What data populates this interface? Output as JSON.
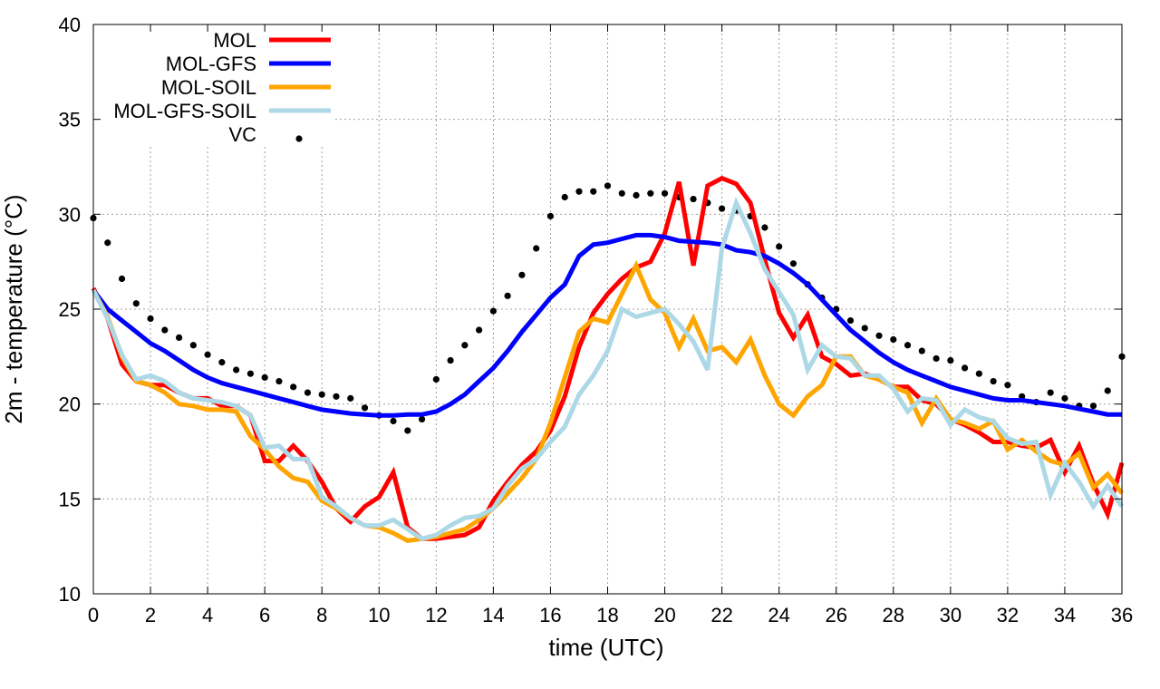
{
  "chart_data": {
    "type": "line",
    "title": "",
    "xlabel": "time (UTC)",
    "ylabel": "2m - temperature (°C)",
    "xlim": [
      0,
      36
    ],
    "ylim": [
      10,
      40
    ],
    "xticks": [
      0,
      2,
      4,
      6,
      8,
      10,
      12,
      14,
      16,
      18,
      20,
      22,
      24,
      26,
      28,
      30,
      32,
      34,
      36
    ],
    "yticks": [
      10,
      15,
      20,
      25,
      30,
      35,
      40
    ],
    "grid": true,
    "legend_position": "top-left",
    "series": [
      {
        "name": "MOL",
        "color": "#ff0000",
        "style": "line",
        "x": [
          0,
          0.5,
          1,
          1.5,
          2,
          2.5,
          3,
          3.5,
          4,
          4.5,
          5,
          5.5,
          6,
          6.5,
          7,
          7.5,
          8,
          8.5,
          9,
          9.5,
          10,
          10.5,
          11,
          11.5,
          12,
          12.5,
          13,
          13.5,
          14,
          14.5,
          15,
          15.5,
          16,
          16.5,
          17,
          17.5,
          18,
          18.5,
          19,
          19.5,
          20,
          20.5,
          21,
          21.5,
          22,
          22.5,
          23,
          23.5,
          24,
          24.5,
          25,
          25.5,
          26,
          26.5,
          27,
          27.5,
          28,
          28.5,
          29,
          29.5,
          30,
          30.5,
          31,
          31.5,
          32,
          32.5,
          33,
          33.5,
          34,
          34.5,
          35,
          35.5,
          36
        ],
        "y": [
          26.1,
          24.5,
          22.1,
          21.2,
          21.0,
          21.0,
          20.6,
          20.3,
          20.3,
          19.9,
          19.9,
          19.4,
          17.0,
          17.0,
          17.8,
          17.0,
          15.9,
          14.5,
          13.8,
          14.6,
          15.1,
          16.4,
          13.5,
          12.9,
          12.9,
          13.0,
          13.1,
          13.5,
          14.9,
          15.9,
          16.8,
          17.5,
          18.6,
          20.4,
          23.0,
          24.8,
          25.8,
          26.6,
          27.2,
          27.5,
          29.0,
          31.7,
          27.3,
          31.5,
          31.9,
          31.6,
          30.6,
          27.6,
          24.8,
          23.5,
          24.7,
          22.5,
          22.1,
          21.5,
          21.6,
          21.3,
          20.9,
          20.9,
          20.2,
          20.0,
          19.2,
          18.9,
          18.5,
          18.0,
          18.0,
          17.8,
          17.7,
          18.1,
          16.4,
          17.8,
          15.8,
          14.2,
          16.9
        ]
      },
      {
        "name": "MOL-GFS",
        "color": "#0000ff",
        "style": "line",
        "x": [
          0,
          0.5,
          1,
          1.5,
          2,
          2.5,
          3,
          3.5,
          4,
          4.5,
          5,
          5.5,
          6,
          6.5,
          7,
          7.5,
          8,
          8.5,
          9,
          9.5,
          10,
          10.5,
          11,
          11.5,
          12,
          12.5,
          13,
          13.5,
          14,
          14.5,
          15,
          15.5,
          16,
          16.5,
          17,
          17.5,
          18,
          18.5,
          19,
          19.5,
          20,
          20.5,
          21,
          21.5,
          22,
          22.5,
          23,
          23.5,
          24,
          24.5,
          25,
          25.5,
          26,
          26.5,
          27,
          27.5,
          28,
          28.5,
          29,
          29.5,
          30,
          30.5,
          31,
          31.5,
          32,
          32.5,
          33,
          33.5,
          34,
          34.5,
          35,
          35.5,
          36
        ],
        "y": [
          26.0,
          25.0,
          24.4,
          23.8,
          23.2,
          22.8,
          22.3,
          21.8,
          21.4,
          21.1,
          20.9,
          20.7,
          20.5,
          20.3,
          20.1,
          19.9,
          19.7,
          19.6,
          19.5,
          19.45,
          19.4,
          19.4,
          19.45,
          19.45,
          19.6,
          20.0,
          20.5,
          21.2,
          21.9,
          22.8,
          23.8,
          24.7,
          25.6,
          26.3,
          27.8,
          28.4,
          28.5,
          28.7,
          28.9,
          28.9,
          28.8,
          28.6,
          28.55,
          28.5,
          28.4,
          28.1,
          28.0,
          27.8,
          27.4,
          26.9,
          26.3,
          25.5,
          24.7,
          23.9,
          23.3,
          22.7,
          22.2,
          21.8,
          21.5,
          21.2,
          20.9,
          20.7,
          20.5,
          20.3,
          20.2,
          20.2,
          20.1,
          20.0,
          19.9,
          19.75,
          19.6,
          19.45,
          19.45
        ]
      },
      {
        "name": "MOL-SOIL",
        "color": "#ffa500",
        "style": "line",
        "x": [
          0,
          0.5,
          1,
          1.5,
          2,
          2.5,
          3,
          3.5,
          4,
          4.5,
          5,
          5.5,
          6,
          6.5,
          7,
          7.5,
          8,
          8.5,
          9,
          9.5,
          10,
          10.5,
          11,
          11.5,
          12,
          12.5,
          13,
          13.5,
          14,
          14.5,
          15,
          15.5,
          16,
          16.5,
          17,
          17.5,
          18,
          18.5,
          19,
          19.5,
          20,
          20.5,
          21,
          21.5,
          22,
          22.5,
          23,
          23.5,
          24,
          24.5,
          25,
          25.5,
          26,
          26.5,
          27,
          27.5,
          28,
          28.5,
          29,
          29.5,
          30,
          30.5,
          31,
          31.5,
          32,
          32.5,
          33,
          33.5,
          34,
          34.5,
          35,
          35.5,
          36
        ],
        "y": [
          26.0,
          24.6,
          22.5,
          21.2,
          21.0,
          20.6,
          20.0,
          19.9,
          19.7,
          19.7,
          19.6,
          18.3,
          17.6,
          16.7,
          16.1,
          15.9,
          14.9,
          14.5,
          14.0,
          13.6,
          13.5,
          13.2,
          12.8,
          12.9,
          13.0,
          13.2,
          13.4,
          13.9,
          14.5,
          15.3,
          16.1,
          17.1,
          19.0,
          21.4,
          23.8,
          24.5,
          24.3,
          25.8,
          27.3,
          25.5,
          24.8,
          23.0,
          24.5,
          22.8,
          23.0,
          22.2,
          23.4,
          21.5,
          20.0,
          19.4,
          20.4,
          21.0,
          22.5,
          22.5,
          21.5,
          21.3,
          20.9,
          20.6,
          19.0,
          20.3,
          19.2,
          19.0,
          18.7,
          19.1,
          17.6,
          18.1,
          17.5,
          17.0,
          16.8,
          17.4,
          15.6,
          16.3,
          15.3
        ]
      },
      {
        "name": "MOL-GFS-SOIL",
        "color": "#add8e6",
        "style": "line",
        "x": [
          0,
          0.5,
          1,
          1.5,
          2,
          2.5,
          3,
          3.5,
          4,
          4.5,
          5,
          5.5,
          6,
          6.5,
          7,
          7.5,
          8,
          8.5,
          9,
          9.5,
          10,
          10.5,
          11,
          11.5,
          12,
          12.5,
          13,
          13.5,
          14,
          14.5,
          15,
          15.5,
          16,
          16.5,
          17,
          17.5,
          18,
          18.5,
          19,
          19.5,
          20,
          20.5,
          21,
          21.5,
          22,
          22.5,
          23,
          23.5,
          24,
          24.5,
          25,
          25.5,
          26,
          26.5,
          27,
          27.5,
          28,
          28.5,
          29,
          29.5,
          30,
          30.5,
          31,
          31.5,
          32,
          32.5,
          33,
          33.5,
          34,
          34.5,
          35,
          35.5,
          36
        ],
        "y": [
          26.0,
          24.5,
          22.6,
          21.3,
          21.5,
          21.2,
          20.6,
          20.3,
          20.2,
          20.1,
          19.9,
          19.4,
          17.7,
          17.8,
          17.1,
          17.1,
          15.1,
          14.6,
          14.0,
          13.6,
          13.6,
          13.9,
          13.4,
          12.9,
          13.1,
          13.6,
          14.0,
          14.1,
          14.5,
          15.7,
          16.6,
          17.1,
          18.0,
          18.8,
          20.5,
          21.5,
          22.8,
          25.0,
          24.6,
          24.8,
          25.0,
          24.2,
          23.3,
          21.8,
          28.2,
          30.6,
          29.0,
          27.1,
          25.9,
          24.7,
          21.8,
          23.1,
          22.5,
          22.4,
          21.5,
          21.5,
          20.8,
          19.6,
          20.3,
          20.2,
          18.9,
          19.7,
          19.3,
          19.1,
          18.2,
          17.9,
          18.0,
          15.2,
          16.9,
          15.9,
          14.6,
          15.7,
          14.6
        ]
      },
      {
        "name": "VC",
        "color": "#000000",
        "style": "points",
        "x": [
          0,
          0.5,
          1,
          1.5,
          2,
          2.5,
          3,
          3.5,
          4,
          4.5,
          5,
          5.5,
          6,
          6.5,
          7,
          7.5,
          8,
          8.5,
          9,
          9.5,
          10,
          10.5,
          11,
          11.5,
          12,
          12.5,
          13,
          13.5,
          14,
          14.5,
          15,
          15.5,
          16,
          16.5,
          17,
          17.5,
          18,
          18.5,
          19,
          19.5,
          20,
          20.5,
          21,
          21.5,
          22,
          22.5,
          23,
          23.5,
          24,
          24.5,
          25,
          25.5,
          26,
          26.5,
          27,
          27.5,
          28,
          28.5,
          29,
          29.5,
          30,
          30.5,
          31,
          31.5,
          32,
          32.5,
          33,
          33.5,
          34,
          34.5,
          35,
          35.5,
          36
        ],
        "y": [
          29.8,
          28.5,
          26.6,
          25.3,
          24.5,
          23.9,
          23.5,
          23.1,
          22.6,
          22.2,
          21.8,
          21.6,
          21.4,
          21.2,
          20.9,
          20.6,
          20.5,
          20.4,
          20.3,
          19.8,
          19.4,
          19.1,
          18.6,
          19.2,
          21.3,
          22.3,
          23.1,
          23.9,
          24.9,
          25.7,
          26.8,
          28.2,
          29.9,
          30.9,
          31.2,
          31.2,
          31.5,
          31.1,
          31.0,
          31.1,
          31.1,
          30.9,
          30.8,
          30.6,
          30.3,
          30.2,
          29.9,
          29.3,
          28.3,
          27.4,
          26.3,
          25.6,
          25.0,
          24.4,
          24.0,
          23.6,
          23.4,
          23.1,
          22.8,
          22.4,
          22.3,
          21.9,
          21.6,
          21.2,
          21.0,
          20.4,
          20.1,
          20.6,
          20.3,
          19.9,
          19.9,
          20.7,
          22.5
        ]
      }
    ]
  }
}
